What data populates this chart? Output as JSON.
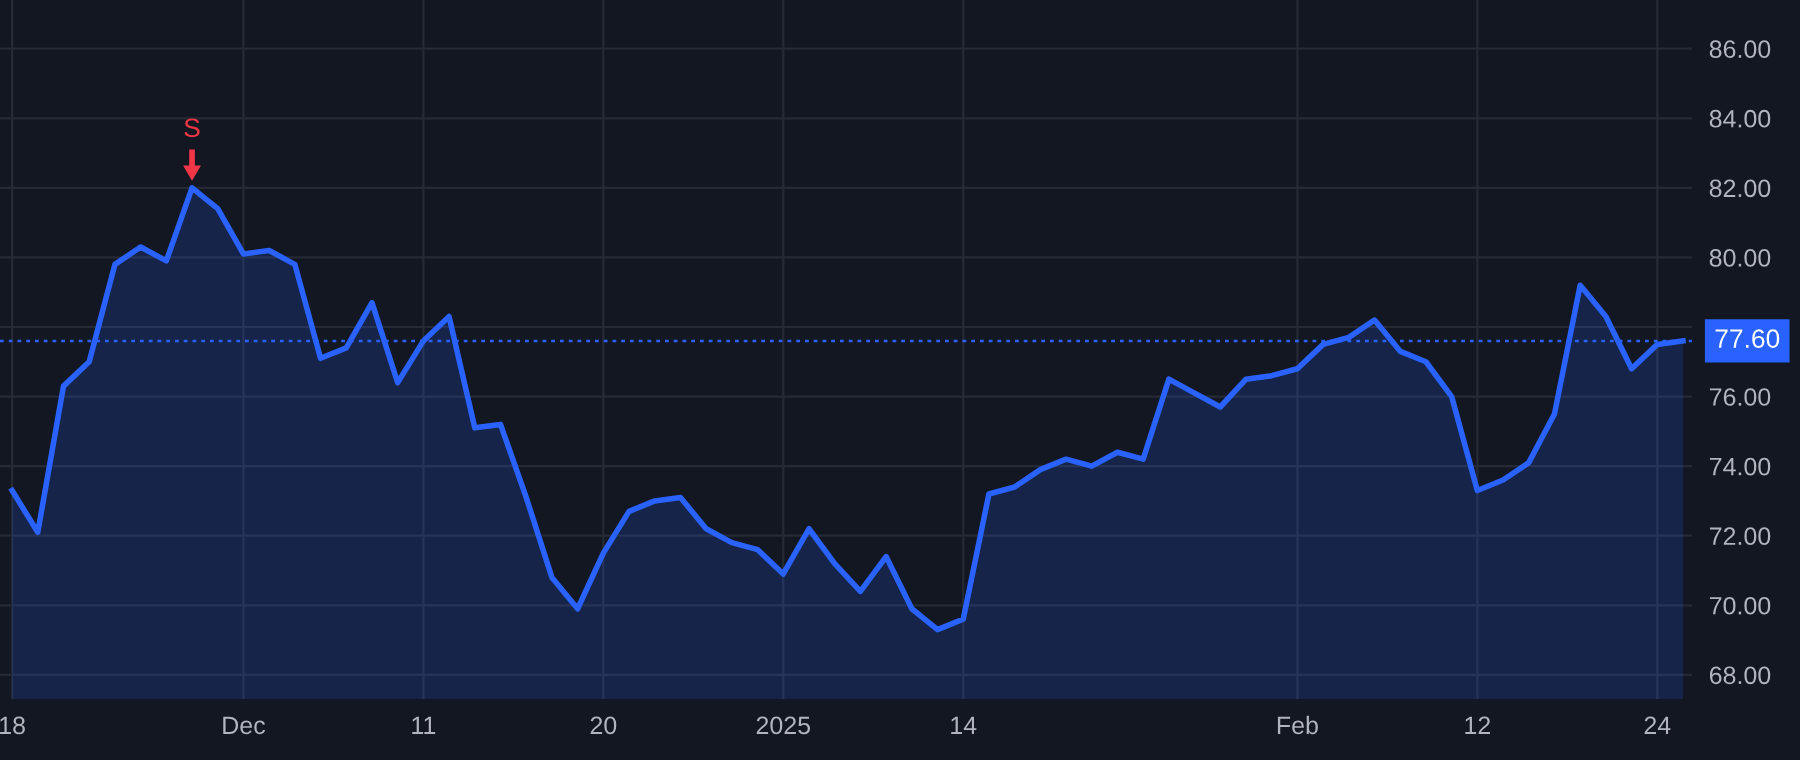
{
  "chart_data": {
    "type": "area",
    "categories": [
      "18",
      null,
      null,
      null,
      null,
      null,
      null,
      null,
      null,
      "Dec",
      null,
      null,
      null,
      null,
      null,
      null,
      "11",
      null,
      null,
      null,
      null,
      null,
      null,
      "20",
      null,
      null,
      null,
      null,
      null,
      null,
      "2025",
      null,
      null,
      null,
      null,
      null,
      null,
      "14",
      null,
      null,
      null,
      null,
      null,
      null,
      null,
      null,
      null,
      null,
      null,
      null,
      "Feb",
      null,
      null,
      null,
      null,
      null,
      null,
      "12",
      null,
      null,
      null,
      null,
      null,
      null,
      "24",
      null
    ],
    "series": [
      {
        "color": "#2962ff",
        "values": [
          73.3,
          72.1,
          76.3,
          77.0,
          79.8,
          80.3,
          79.9,
          82.0,
          81.4,
          80.1,
          80.2,
          79.8,
          77.1,
          77.4,
          78.7,
          76.4,
          77.6,
          78.3,
          75.1,
          75.2,
          73.1,
          70.8,
          69.9,
          71.5,
          72.7,
          73.0,
          73.1,
          72.2,
          71.8,
          71.6,
          70.9,
          72.2,
          71.2,
          70.4,
          71.4,
          69.9,
          69.3,
          69.6,
          73.2,
          73.4,
          73.9,
          74.2,
          74.0,
          74.4,
          74.2,
          76.5,
          76.1,
          75.7,
          76.5,
          76.6,
          76.8,
          77.5,
          77.7,
          78.2,
          77.3,
          77.0,
          76.0,
          73.3,
          73.6,
          74.1,
          75.5,
          79.2,
          78.3,
          76.8,
          77.5,
          77.6
        ]
      }
    ],
    "ylim": [
      67.3,
      87.4
    ],
    "yticks": [
      {
        "value": 68,
        "label": "68.00"
      },
      {
        "value": 70,
        "label": "70.00"
      },
      {
        "value": 72,
        "label": "72.00"
      },
      {
        "value": 74,
        "label": "74.00"
      },
      {
        "value": 76,
        "label": "76.00"
      },
      {
        "value": 78,
        "label": null
      },
      {
        "value": 80,
        "label": "80.00"
      },
      {
        "value": 82,
        "label": "82.00"
      },
      {
        "value": 84,
        "label": "84.00"
      },
      {
        "value": 86,
        "label": "86.00"
      }
    ],
    "ref_lines": [
      {
        "axis": "y",
        "value": 77.6,
        "label": "77.60",
        "color": "#2962ff",
        "line_style": "dotted"
      }
    ],
    "annotations": [
      {
        "text": "S",
        "y": 82.0
      }
    ],
    "grid": true,
    "legend": false
  }
}
